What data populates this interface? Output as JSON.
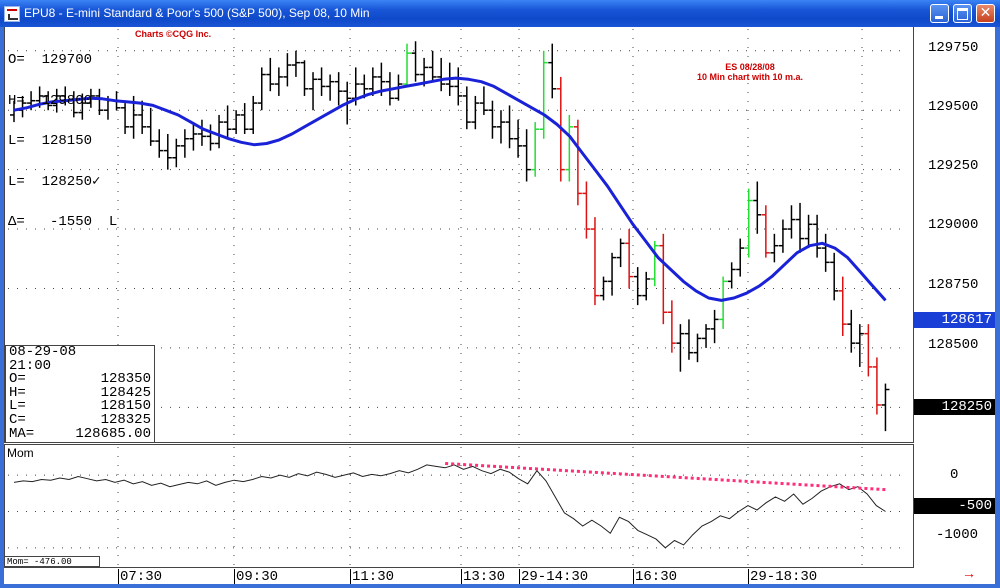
{
  "window": {
    "title": "EPU8 - E-mini Standard & Poor's 500 (S&P 500), Sep 08, 10 Min",
    "buttons": {
      "minimize": "minimize",
      "maximize": "maximize",
      "close": "✕"
    }
  },
  "header": {
    "ohlc": [
      "O=  129700",
      "H=  129800",
      "L=  128150",
      "L=  128250✓",
      "Δ=   -1550  L"
    ],
    "credit": "Charts ©CQG Inc."
  },
  "annotation": {
    "line1": "ES 08/28/08",
    "line2": "10 Min chart with 10 m.a."
  },
  "info_box": {
    "date": "08-29-08",
    "time": "21:00",
    "rows": [
      {
        "k": "O=",
        "v": "128350"
      },
      {
        "k": "H=",
        "v": "128425"
      },
      {
        "k": "L=",
        "v": "128150"
      },
      {
        "k": "C=",
        "v": "128325"
      },
      {
        "k": "MA=",
        "v": "128685.00"
      }
    ]
  },
  "price_axis": {
    "labels": [
      "129750",
      "129500",
      "129250",
      "129000",
      "128750",
      "128500",
      "128250"
    ],
    "current_tag": "128617",
    "last_tag": "128250"
  },
  "momentum": {
    "label": "Mom",
    "readout": "Mom=    -476.00",
    "axis_labels": [
      "0",
      "-1000"
    ],
    "tag": "-500"
  },
  "time_axis": {
    "labels": [
      "07:30",
      "09:30",
      "11:30",
      "13:30",
      "29-14:30",
      "16:30",
      "29-18:30"
    ]
  },
  "colors": {
    "up_bar": "#22dd33",
    "down_bar": "#dd1111",
    "neutral_bar": "#000000",
    "moving_average": "#1a22d8",
    "trend_line": "#ff2d7a",
    "title_bar": "#0e49c9"
  },
  "chart_data": {
    "type": "ohlc-bar",
    "price_unit": "index points x100",
    "ylim": [
      128100,
      129850
    ],
    "bars": [
      [
        129480,
        129540,
        129450,
        129500
      ],
      [
        129500,
        129560,
        129470,
        129530
      ],
      [
        129530,
        129580,
        129500,
        129540
      ],
      [
        129540,
        129600,
        129510,
        129560
      ],
      [
        129560,
        129580,
        129500,
        129520
      ],
      [
        129520,
        129590,
        129490,
        129560
      ],
      [
        129560,
        129600,
        129520,
        129540
      ],
      [
        129540,
        129580,
        129470,
        129490
      ],
      [
        129490,
        129570,
        129460,
        129530
      ],
      [
        129530,
        129590,
        129510,
        129560
      ],
      [
        129560,
        129590,
        129480,
        129500
      ],
      [
        129500,
        129560,
        129460,
        129540
      ],
      [
        129540,
        129580,
        129500,
        129510
      ],
      [
        129510,
        129530,
        129400,
        129430
      ],
      [
        129430,
        129560,
        129380,
        129480
      ],
      [
        129480,
        129540,
        129400,
        129430
      ],
      [
        129430,
        129510,
        129350,
        129370
      ],
      [
        129370,
        129420,
        129300,
        129330
      ],
      [
        129330,
        129400,
        129250,
        129300
      ],
      [
        129300,
        129380,
        129260,
        129350
      ],
      [
        129350,
        129420,
        129300,
        129380
      ],
      [
        129380,
        129450,
        129330,
        129400
      ],
      [
        129400,
        129460,
        129350,
        129390
      ],
      [
        129390,
        129440,
        129330,
        129360
      ],
      [
        129360,
        129480,
        129340,
        129450
      ],
      [
        129450,
        129520,
        129380,
        129420
      ],
      [
        129420,
        129500,
        129400,
        129480
      ],
      [
        129480,
        129530,
        129400,
        129420
      ],
      [
        129420,
        129560,
        129400,
        129530
      ],
      [
        129530,
        129680,
        129500,
        129650
      ],
      [
        129650,
        129720,
        129580,
        129610
      ],
      [
        129610,
        129680,
        129560,
        129640
      ],
      [
        129640,
        129740,
        129600,
        129690
      ],
      [
        129690,
        129750,
        129640,
        129700
      ],
      [
        129700,
        129710,
        129560,
        129590
      ],
      [
        129590,
        129660,
        129500,
        129630
      ],
      [
        129630,
        129680,
        129560,
        129600
      ],
      [
        129600,
        129650,
        129540,
        129620
      ],
      [
        129620,
        129660,
        129520,
        129580
      ],
      [
        129580,
        129620,
        129440,
        129550
      ],
      [
        129550,
        129680,
        129520,
        129610
      ],
      [
        129610,
        129650,
        129550,
        129590
      ],
      [
        129590,
        129680,
        129560,
        129640
      ],
      [
        129640,
        129700,
        129560,
        129620
      ],
      [
        129620,
        129660,
        129520,
        129550
      ],
      [
        129550,
        129650,
        129540,
        129610
      ],
      [
        129610,
        129780,
        129600,
        129740
      ],
      [
        129740,
        129790,
        129620,
        129650
      ],
      [
        129650,
        129720,
        129600,
        129680
      ],
      [
        129680,
        129750,
        129620,
        129640
      ],
      [
        129640,
        129720,
        129580,
        129610
      ],
      [
        129610,
        129700,
        129560,
        129600
      ],
      [
        129600,
        129680,
        129520,
        129560
      ],
      [
        129560,
        129600,
        129420,
        129450
      ],
      [
        129450,
        129560,
        129420,
        129530
      ],
      [
        129530,
        129600,
        129480,
        129500
      ],
      [
        129500,
        129540,
        129380,
        129430
      ],
      [
        129430,
        129500,
        129360,
        129450
      ],
      [
        129450,
        129520,
        129340,
        129380
      ],
      [
        129380,
        129460,
        129300,
        129350
      ],
      [
        129350,
        129420,
        129200,
        129250
      ],
      [
        129250,
        129450,
        129220,
        129420
      ],
      [
        129420,
        129750,
        129380,
        129700
      ],
      [
        129700,
        129780,
        129550,
        129590
      ],
      [
        129590,
        129640,
        129200,
        129250
      ],
      [
        129250,
        129480,
        129200,
        129430
      ],
      [
        129430,
        129460,
        129100,
        129150
      ],
      [
        129150,
        129200,
        128960,
        129000
      ],
      [
        129000,
        129050,
        128680,
        128720
      ],
      [
        128720,
        128800,
        128700,
        128780
      ],
      [
        128780,
        128900,
        128720,
        128880
      ],
      [
        128880,
        128960,
        128840,
        128940
      ],
      [
        128940,
        129000,
        128750,
        128800
      ],
      [
        128800,
        128840,
        128680,
        128720
      ],
      [
        128720,
        128820,
        128700,
        128790
      ],
      [
        128790,
        128950,
        128760,
        128930
      ],
      [
        128930,
        128980,
        128600,
        128650
      ],
      [
        128650,
        128700,
        128480,
        128520
      ],
      [
        128520,
        128600,
        128400,
        128560
      ],
      [
        128560,
        128620,
        128450,
        128480
      ],
      [
        128480,
        128560,
        128440,
        128540
      ],
      [
        128540,
        128600,
        128500,
        128580
      ],
      [
        128580,
        128660,
        128520,
        128620
      ],
      [
        128620,
        128800,
        128580,
        128780
      ],
      [
        128780,
        128860,
        128750,
        128830
      ],
      [
        128830,
        128960,
        128800,
        128920
      ],
      [
        128920,
        129170,
        128880,
        129120
      ],
      [
        129120,
        129200,
        128980,
        129060
      ],
      [
        129060,
        129100,
        128880,
        128900
      ],
      [
        128900,
        128980,
        128860,
        128930
      ],
      [
        128930,
        129040,
        128900,
        129000
      ],
      [
        129000,
        129100,
        128960,
        129040
      ],
      [
        129040,
        129110,
        128900,
        128960
      ],
      [
        128960,
        129060,
        128920,
        129020
      ],
      [
        129020,
        129060,
        128880,
        128920
      ],
      [
        128920,
        128980,
        128820,
        128860
      ],
      [
        128860,
        128900,
        128700,
        128740
      ],
      [
        128740,
        128800,
        128550,
        128600
      ],
      [
        128600,
        128660,
        128480,
        128520
      ],
      [
        128520,
        128600,
        128420,
        128560
      ],
      [
        128560,
        128600,
        128380,
        128420
      ],
      [
        128420,
        128460,
        128220,
        128260
      ],
      [
        128260,
        128350,
        128150,
        128325
      ]
    ],
    "moving_average": [
      129500,
      129510,
      129525,
      129535,
      129540,
      129545,
      129550,
      129548,
      129540,
      129535,
      129530,
      129520,
      129500,
      129480,
      129450,
      129420,
      129400,
      129380,
      129365,
      129355,
      129360,
      129375,
      129400,
      129430,
      129460,
      129490,
      129520,
      129545,
      129565,
      129580,
      129590,
      129600,
      129610,
      129620,
      129630,
      129635,
      129630,
      129620,
      129600,
      129570,
      129540,
      129510,
      129480,
      129440,
      129390,
      129320,
      129250,
      129180,
      129100,
      129020,
      128950,
      128880,
      128830,
      128780,
      128740,
      128710,
      128700,
      128710,
      128730,
      128760,
      128800,
      128850,
      128900,
      128930,
      128940,
      128920,
      128880,
      128820,
      128760,
      128700
    ],
    "momentum": {
      "ylim": [
        -1250,
        400
      ],
      "values": [
        -100,
        -80,
        -90,
        -60,
        -70,
        -40,
        -60,
        -20,
        -50,
        -80,
        -60,
        -100,
        -70,
        -120,
        -90,
        -140,
        -110,
        -160,
        -130,
        -100,
        -120,
        -80,
        -140,
        -100,
        -70,
        -90,
        -60,
        -20,
        -40,
        0,
        -30,
        20,
        -10,
        40,
        10,
        -30,
        0,
        30,
        -20,
        10,
        -10,
        20,
        60,
        30,
        80,
        140,
        120,
        100,
        140,
        80,
        120,
        60,
        20,
        80,
        40,
        -50,
        -120,
        60,
        -80,
        -300,
        -520,
        -600,
        -700,
        -620,
        -700,
        -800,
        -580,
        -640,
        -760,
        -820,
        -880,
        -1000,
        -900,
        -960,
        -820,
        -700,
        -640,
        -560,
        -600,
        -500,
        -420,
        -480,
        -380,
        -300,
        -360,
        -260,
        -400,
        -320,
        -220,
        -160,
        -120,
        -200,
        -160,
        -260,
        -420,
        -500
      ],
      "trend_line": {
        "x": [
          47,
          95
        ],
        "y": [
          160,
          -200
        ]
      }
    }
  }
}
